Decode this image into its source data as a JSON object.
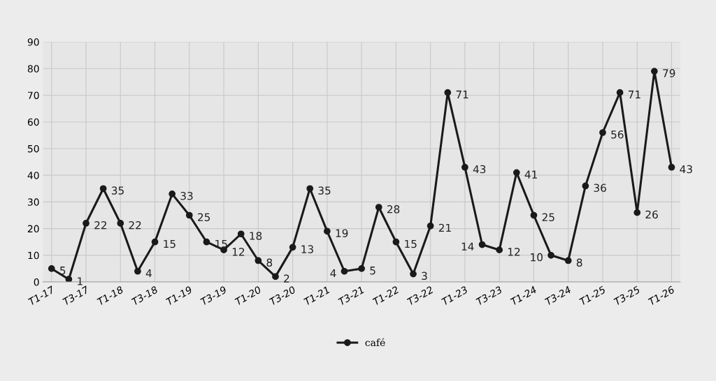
{
  "chart_data": {
    "type": "line",
    "categories": [
      "T1-17",
      null,
      "T3-17",
      null,
      "T1-18",
      null,
      "T3-18",
      null,
      "T1-19",
      null,
      "T3-19",
      null,
      "T1-20",
      null,
      "T3-20",
      null,
      "T1-21",
      null,
      "T3-21",
      null,
      "T1-22",
      null,
      "T3-22",
      null,
      "T1-23",
      null,
      "T3-23",
      null,
      "T1-24",
      null,
      "T3-24",
      null,
      "T1-25",
      null,
      "T3-25",
      null,
      "T1-26"
    ],
    "series": [
      {
        "name": "café",
        "color": "#1a1a1a",
        "values": [
          5,
          1,
          22,
          35,
          22,
          4,
          15,
          33,
          25,
          15,
          12,
          18,
          8,
          2,
          13,
          35,
          19,
          4,
          5,
          28,
          15,
          3,
          21,
          71,
          43,
          14,
          12,
          41,
          25,
          10,
          8,
          36,
          56,
          71,
          26,
          79,
          43
        ]
      }
    ],
    "ylim": [
      0,
      90
    ],
    "yticks": [
      0,
      10,
      20,
      30,
      40,
      50,
      60,
      70,
      80,
      90
    ],
    "grid": true,
    "legend": "bottom",
    "marker": "circle",
    "line_style": "solid",
    "data_labels": true
  }
}
